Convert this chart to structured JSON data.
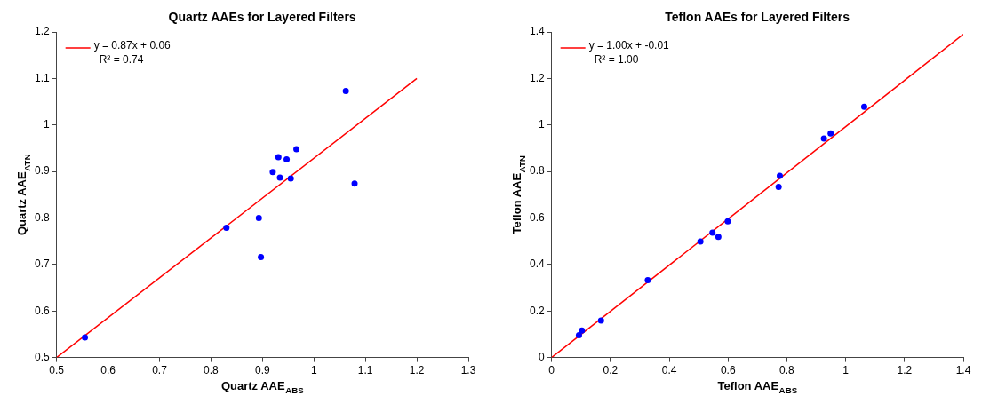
{
  "chart_data": [
    {
      "type": "scatter",
      "title": "Quartz AAEs for Layered Filters",
      "xlabel": "Quartz AAE$_{ABS}$",
      "ylabel": "Quartz AAE$_{ATN}$",
      "xlim": [
        0.5,
        1.3
      ],
      "xticks": [
        0.5,
        0.6,
        0.7,
        0.8,
        0.9,
        1,
        1.1,
        1.2,
        1.3
      ],
      "ylim": [
        0.5,
        1.2
      ],
      "yticks": [
        0.5,
        0.6,
        0.7,
        0.8,
        0.9,
        1,
        1.1,
        1.2
      ],
      "marker": "circle",
      "legend": "top left",
      "annotations": [
        "R² = 0.74"
      ],
      "series": [
        {
          "color": "#0000ff",
          "x": [
            0.555,
            0.83,
            0.893,
            0.897,
            0.92,
            0.931,
            0.934,
            0.947,
            0.955,
            0.966,
            1.062,
            1.079
          ],
          "values": [
            0.543,
            0.779,
            0.8,
            0.716,
            0.899,
            0.931,
            0.887,
            0.926,
            0.885,
            0.948,
            1.073,
            0.874
          ]
        },
        {
          "type": "line",
          "marker": "none",
          "name": "y = 0.87x + 0.06",
          "color": "#ff0000",
          "x": [
            0.5,
            1.2
          ],
          "values": [
            0.5,
            1.1
          ]
        }
      ]
    },
    {
      "type": "scatter",
      "title": "Teflon AAEs for Layered Filters",
      "xlabel": "Teflon AAE$_{ABS}$",
      "ylabel": "Teflon AAE$_{ATN}$",
      "xlim": [
        0,
        1.4
      ],
      "xticks": [
        0,
        0.2,
        0.4,
        0.6,
        0.8,
        1,
        1.2,
        1.4
      ],
      "ylim": [
        0,
        1.4
      ],
      "yticks": [
        0,
        0.2,
        0.4,
        0.6,
        0.8,
        1,
        1.2,
        1.4
      ],
      "marker": "circle",
      "legend": "top left",
      "annotations": [
        "R² = 1.00"
      ],
      "series": [
        {
          "color": "#0000ff",
          "x": [
            0.093,
            0.103,
            0.168,
            0.327,
            0.506,
            0.547,
            0.567,
            0.599,
            0.772,
            0.776,
            0.926,
            0.949,
            1.063
          ],
          "values": [
            0.096,
            0.116,
            0.159,
            0.333,
            0.499,
            0.537,
            0.519,
            0.586,
            0.734,
            0.781,
            0.942,
            0.964,
            1.078
          ]
        },
        {
          "type": "line",
          "marker": "none",
          "name": "y = 1.00x + -0.01",
          "color": "#ff0000",
          "x": [
            0,
            1.4
          ],
          "values": [
            0,
            1.39
          ]
        }
      ]
    }
  ]
}
